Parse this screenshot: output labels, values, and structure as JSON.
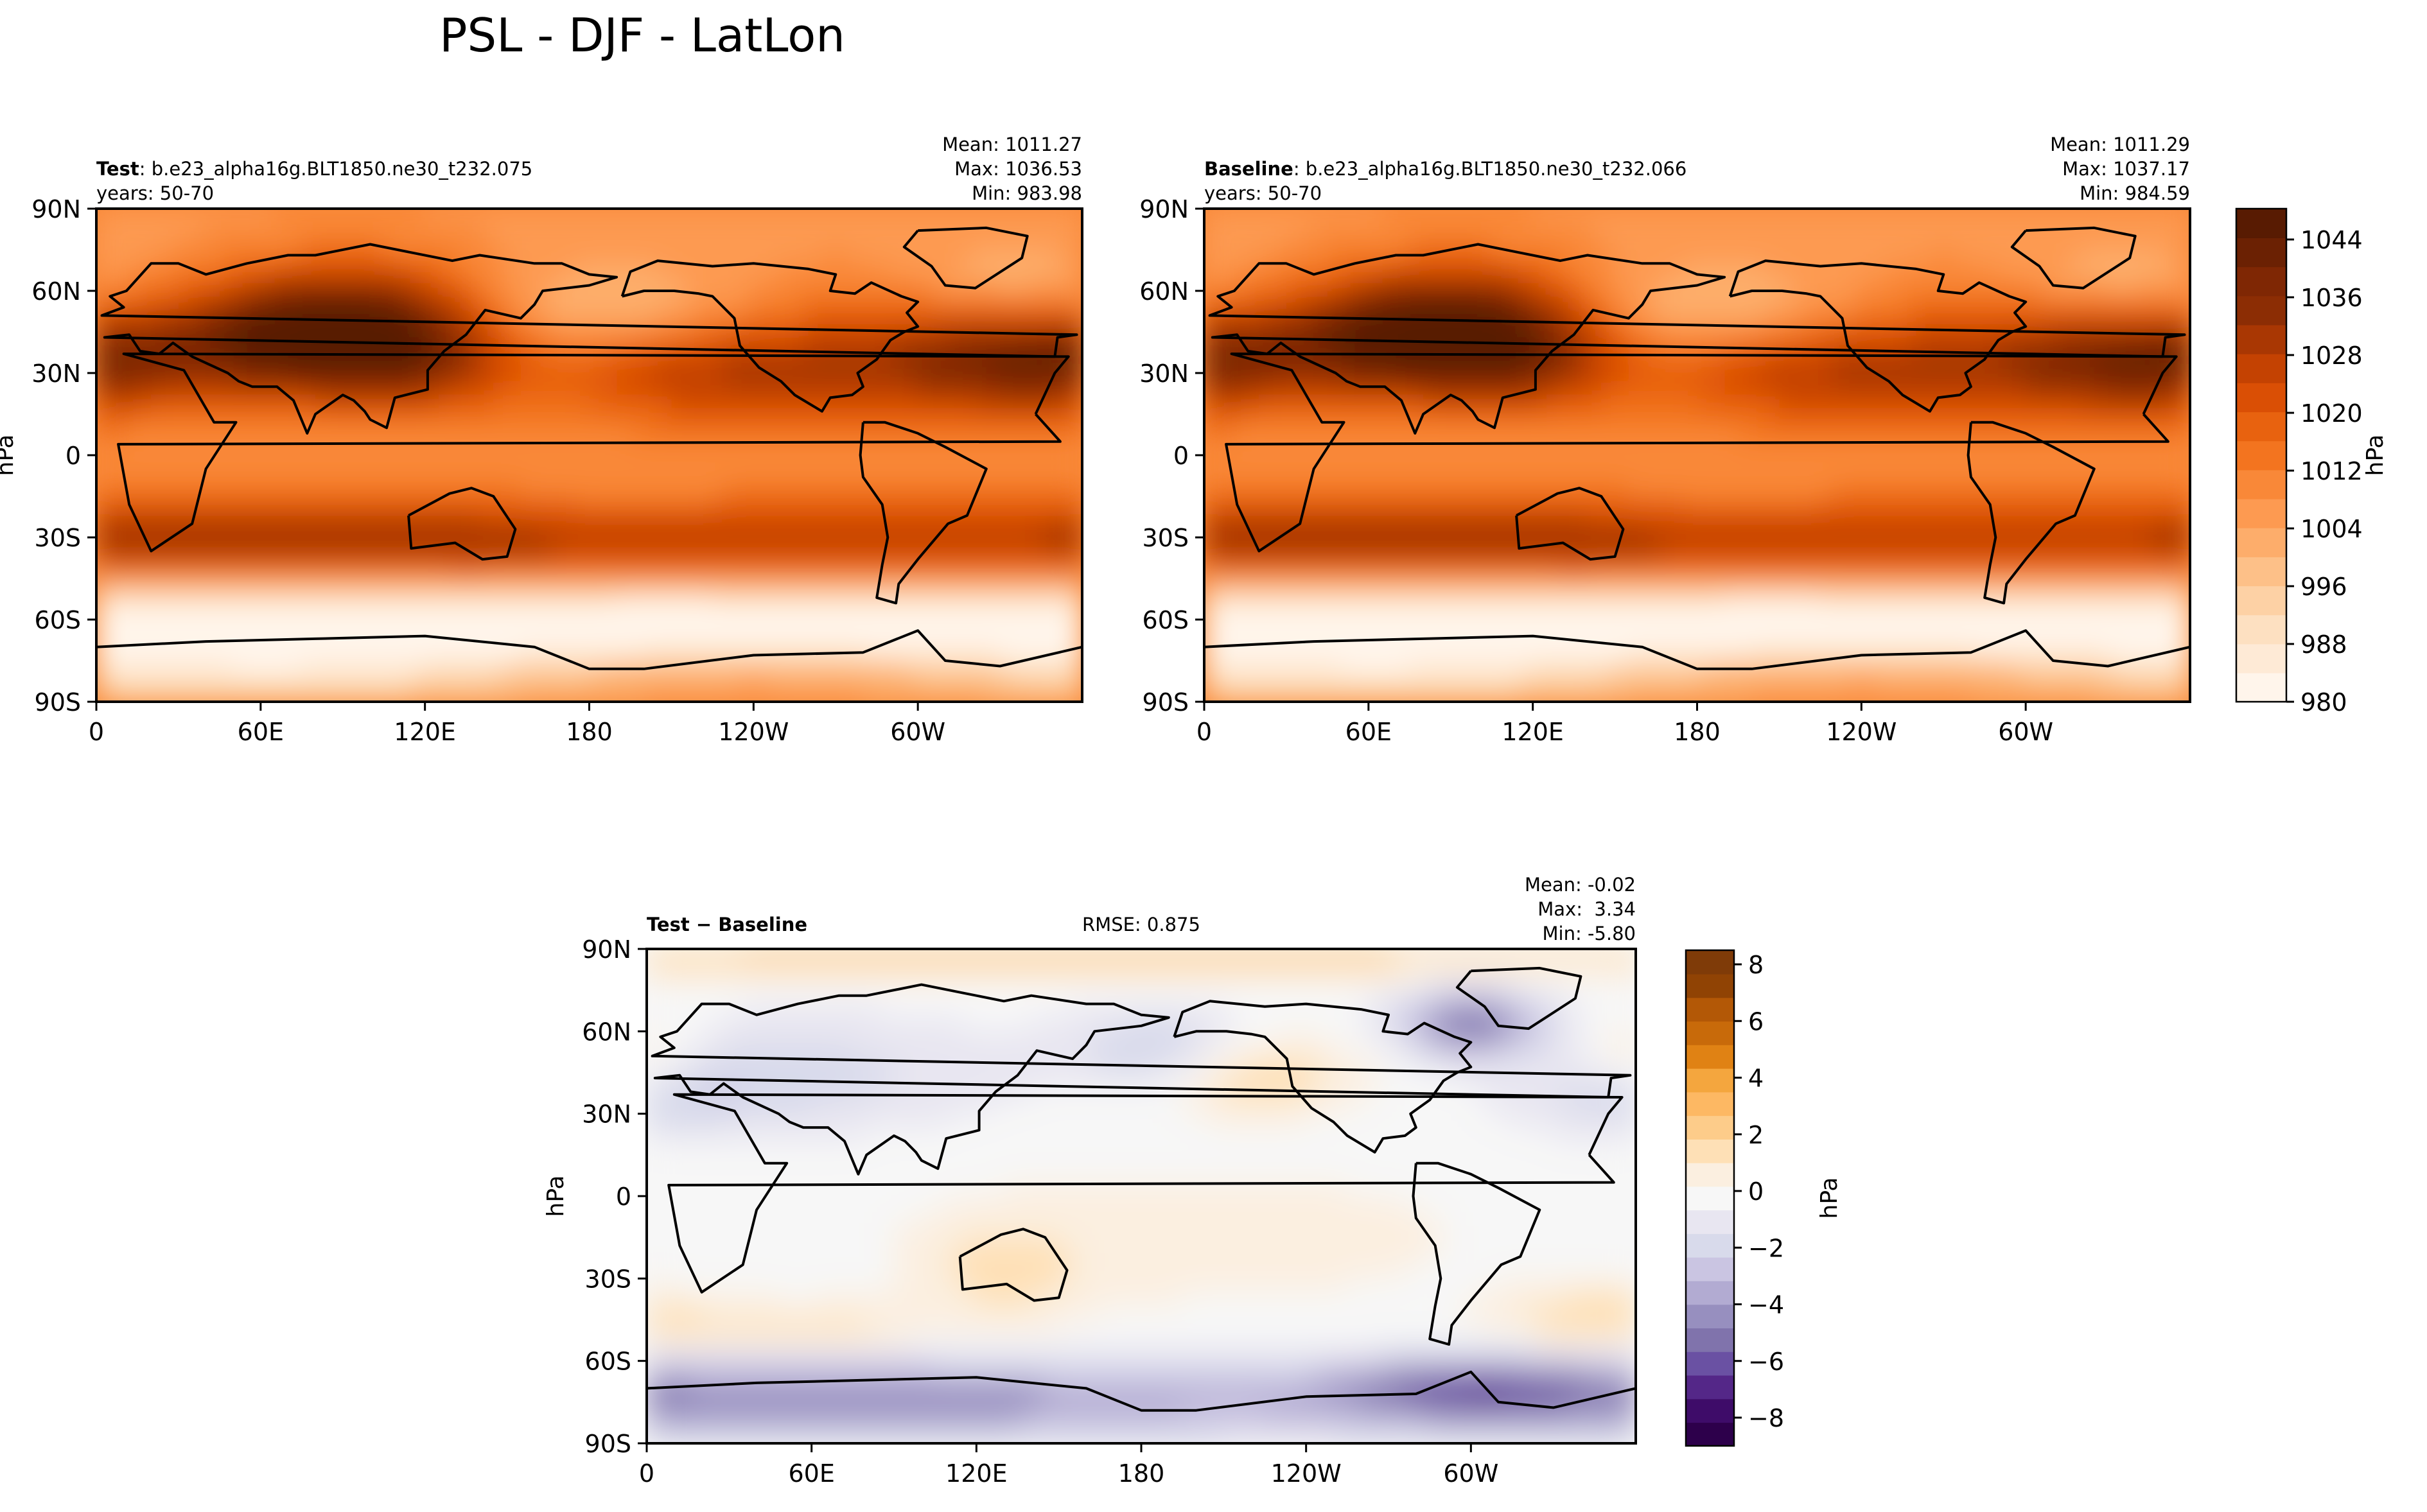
{
  "figure": {
    "title": "PSL - DJF - LatLon"
  },
  "chart_data": [
    {
      "type": "heatmap",
      "panel": "test",
      "label_bold": "Test",
      "label_rest": ": b.e23_alpha16g.BLT1850.ne30_t232.075",
      "years": "years: 50-70",
      "stats": [
        "Mean: 1011.27",
        "Max: 1036.53",
        "Min: 983.98"
      ],
      "xticks": [
        "0",
        "60E",
        "120E",
        "180",
        "120W",
        "60W"
      ],
      "yticks": [
        "90N",
        "60N",
        "30N",
        "0",
        "30S",
        "60S",
        "90S"
      ],
      "ylabel": "hPa",
      "xlim": [
        0,
        360
      ],
      "ylim": [
        -90,
        90
      ],
      "field_stats": {
        "mean": 1011.27,
        "max": 1036.53,
        "min": 983.98
      }
    },
    {
      "type": "heatmap",
      "panel": "baseline",
      "label_bold": "Baseline",
      "label_rest": ": b.e23_alpha16g.BLT1850.ne30_t232.066",
      "years": "years: 50-70",
      "stats": [
        "Mean: 1011.29",
        "Max: 1037.17",
        "Min: 984.59"
      ],
      "xticks": [
        "0",
        "60E",
        "120E",
        "180",
        "120W",
        "60W"
      ],
      "yticks": [
        "90N",
        "60N",
        "30N",
        "0",
        "30S",
        "60S",
        "90S"
      ],
      "xlim": [
        0,
        360
      ],
      "ylim": [
        -90,
        90
      ],
      "field_stats": {
        "mean": 1011.29,
        "max": 1037.17,
        "min": 984.59
      }
    },
    {
      "type": "heatmap",
      "panel": "difference",
      "label_bold": "Test − Baseline",
      "rmse": "RMSE: 0.875",
      "stats": [
        "Mean: -0.02",
        "Max:  3.34",
        "Min: -5.80"
      ],
      "xticks": [
        "0",
        "60E",
        "120E",
        "180",
        "120W",
        "60W"
      ],
      "yticks": [
        "90N",
        "60N",
        "30N",
        "0",
        "30S",
        "60S",
        "90S"
      ],
      "ylabel": "hPa",
      "xlim": [
        0,
        360
      ],
      "ylim": [
        -90,
        90
      ],
      "field_stats": {
        "mean": -0.02,
        "max": 3.34,
        "min": -5.8
      }
    }
  ],
  "colorbars": {
    "main": {
      "ticks": [
        "1044",
        "1036",
        "1028",
        "1020",
        "1012",
        "1004",
        "996",
        "988",
        "980"
      ],
      "label": "hPa",
      "range": [
        980,
        1048
      ],
      "colors": [
        "#fff5eb",
        "#feead6",
        "#fde0c1",
        "#fdd1a5",
        "#fdc088",
        "#fdad6b",
        "#fd9a51",
        "#f98838",
        "#f3741f",
        "#e8620f",
        "#da4f05",
        "#c44202",
        "#a93703",
        "#8c2d04",
        "#7f2704",
        "#6b2103",
        "#581b02"
      ]
    },
    "diff": {
      "ticks": [
        "8",
        "6",
        "4",
        "2",
        "0",
        "−2",
        "−4",
        "−6",
        "−8"
      ],
      "label": "hPa",
      "range": [
        -9,
        9
      ],
      "colors": [
        "#2d004b",
        "#3e0c69",
        "#542788",
        "#6a51a3",
        "#8073ac",
        "#978fbf",
        "#b2abd2",
        "#cac5e2",
        "#d8daeb",
        "#e8e6f1",
        "#f7f7f7",
        "#fbefe0",
        "#fee0b6",
        "#fdcc8a",
        "#fdb863",
        "#f4a63e",
        "#e08214",
        "#c86a0a",
        "#b35806",
        "#904304",
        "#7f3b08"
      ]
    }
  }
}
